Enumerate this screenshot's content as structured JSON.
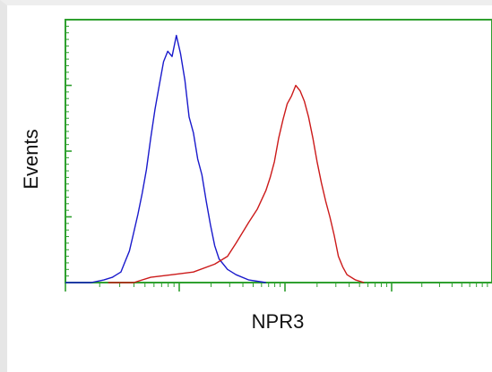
{
  "chart_data": {
    "type": "line",
    "title": "",
    "xlabel": "NPR3",
    "ylabel": "Events",
    "grid": false,
    "legend": "none",
    "xlim": [
      0,
      100
    ],
    "ylim": [
      0,
      100
    ],
    "series": [
      {
        "color": "#1a1acc",
        "x": [
          0,
          3,
          6,
          9,
          11,
          13,
          14,
          15,
          16,
          17,
          18,
          19,
          20,
          21,
          22,
          23,
          24,
          25,
          26,
          27,
          28,
          29,
          30,
          31,
          32,
          33,
          34,
          35,
          36,
          38,
          40,
          43,
          47
        ],
        "y": [
          0,
          0,
          0,
          1,
          2,
          4,
          8,
          12,
          19,
          26,
          34,
          43,
          55,
          66,
          75,
          84,
          88,
          86,
          94,
          87,
          77,
          63,
          57,
          47,
          41,
          31,
          22,
          14,
          9,
          5,
          3,
          1,
          0
        ]
      },
      {
        "color": "#cc1a1a",
        "x": [
          10,
          16,
          20,
          25,
          30,
          35,
          38,
          40,
          43,
          45,
          47,
          48,
          49,
          50,
          51,
          52,
          53,
          54,
          55,
          56,
          57,
          58,
          59,
          60,
          61,
          62,
          63,
          64,
          65,
          66,
          68,
          70
        ],
        "y": [
          0,
          0,
          2,
          3,
          4,
          7,
          10,
          15,
          23,
          28,
          35,
          40,
          46,
          55,
          62,
          68,
          71,
          75,
          73,
          69,
          63,
          55,
          46,
          38,
          31,
          25,
          18,
          10,
          6,
          3,
          1,
          0
        ]
      }
    ]
  }
}
